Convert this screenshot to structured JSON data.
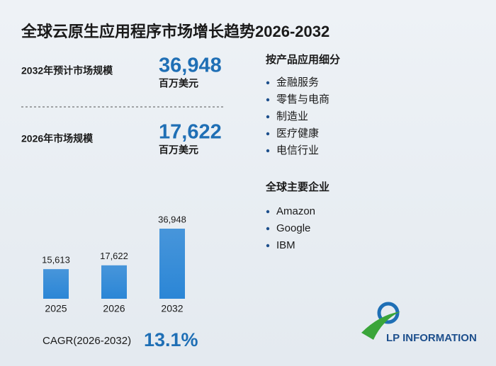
{
  "title": "全球云原生应用程序市场增长趋势2026-2032",
  "highlights": [
    {
      "label": "2032年预计市场规模",
      "value": "36,948",
      "unit": "百万美元"
    },
    {
      "label": "2026年市场规模",
      "value": "17,622",
      "unit": "百万美元"
    }
  ],
  "chart_data": {
    "type": "bar",
    "categories": [
      "2025",
      "2026",
      "2032"
    ],
    "values": [
      15613,
      17622,
      36948
    ],
    "value_labels": [
      "15,613",
      "17,622",
      "36,948"
    ],
    "color": "#2b86d6"
  },
  "cagr": {
    "label": "CAGR(2026-2032)",
    "value": "13.1%"
  },
  "segments": {
    "title": "按产品应用细分",
    "items": [
      "金融服务",
      "零售与电商",
      "制造业",
      "医疗健康",
      "电信行业"
    ]
  },
  "companies": {
    "title": "全球主要企业",
    "items": [
      "Amazon",
      "Google",
      "IBM"
    ]
  },
  "logo": "LP INFORMATION"
}
